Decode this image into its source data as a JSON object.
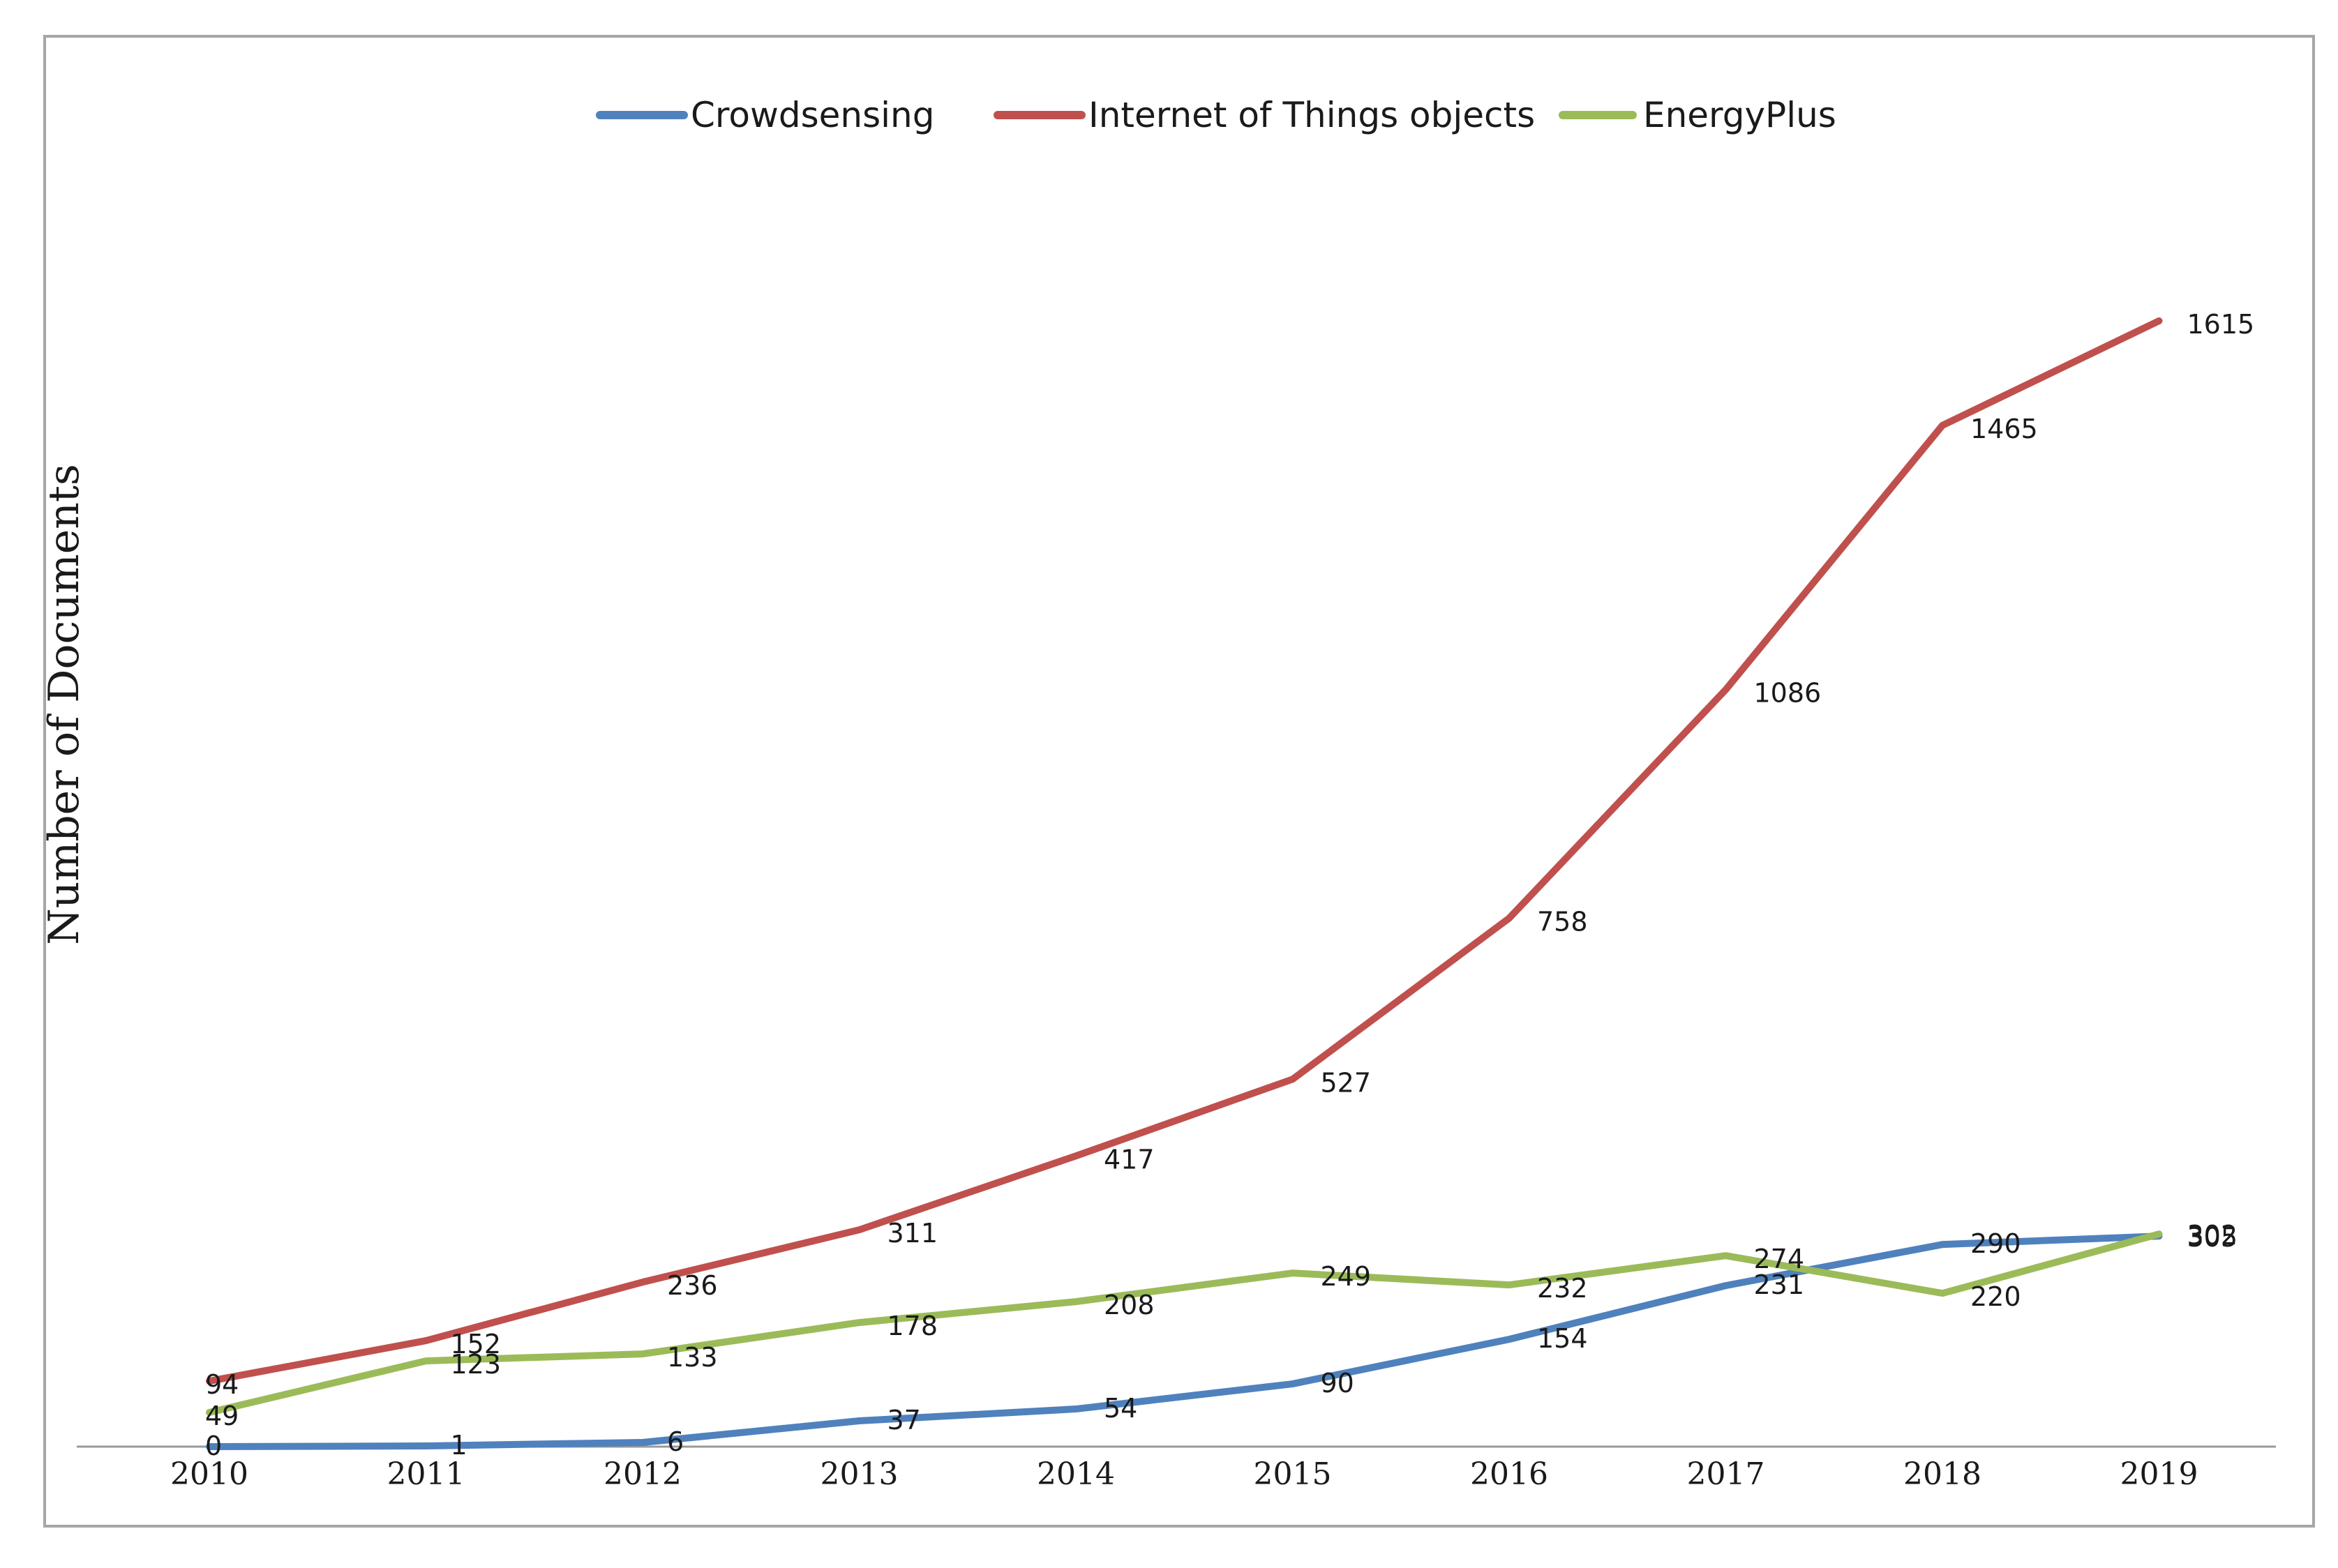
{
  "chart_data": {
    "type": "line",
    "title": "",
    "xlabel": "",
    "ylabel": "Number of Documents",
    "x": [
      "2010",
      "2011",
      "2012",
      "2013",
      "2014",
      "2015",
      "2016",
      "2017",
      "2018",
      "2019"
    ],
    "ylim": [
      0,
      1800
    ],
    "grid": false,
    "legend_position": "top",
    "series": [
      {
        "name": "Crowdsensing",
        "color": "#4f81bd",
        "values": [
          0,
          1,
          6,
          37,
          54,
          90,
          154,
          231,
          290,
          302
        ]
      },
      {
        "name": "Internet of Things objects",
        "color": "#c0504d",
        "values": [
          94,
          152,
          236,
          311,
          417,
          527,
          758,
          1086,
          1465,
          1615
        ]
      },
      {
        "name": "EnergyPlus",
        "color": "#9bbb59",
        "values": [
          49,
          123,
          133,
          178,
          208,
          249,
          232,
          274,
          220,
          305
        ]
      }
    ]
  }
}
